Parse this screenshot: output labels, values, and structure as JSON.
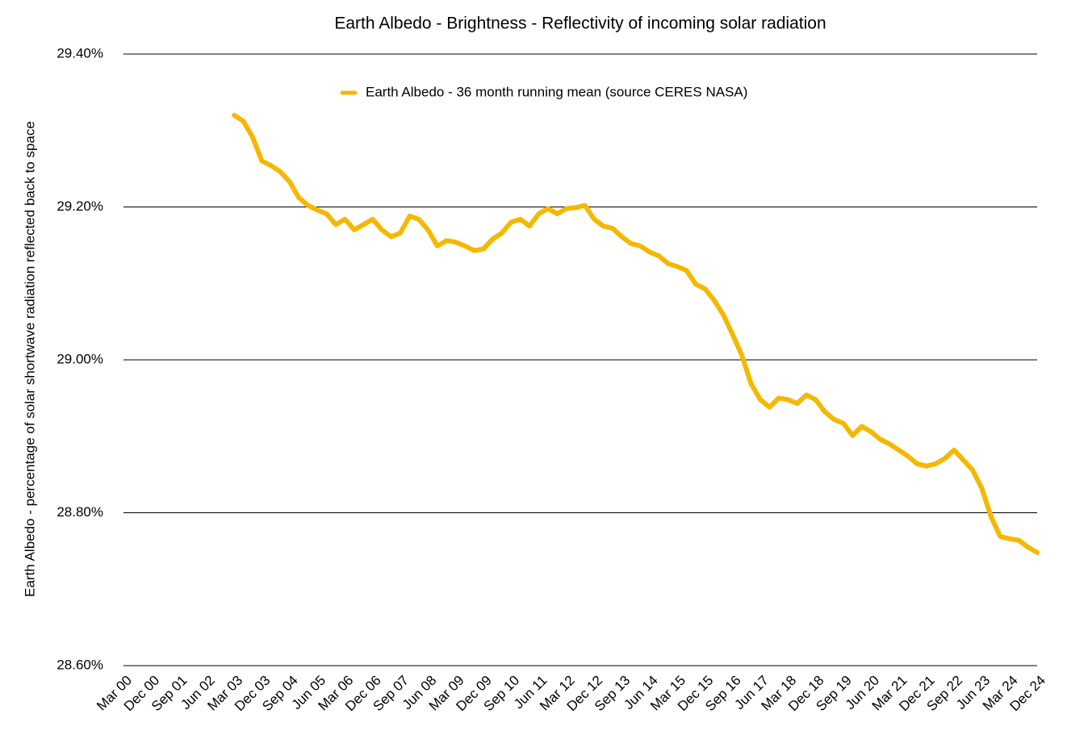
{
  "chart_data": {
    "type": "line",
    "title": "Earth Albedo - Brightness - Reflectivity of incoming solar radiation",
    "y_label": "Earth Albedo - percentage of solar shortwave radiation reflected back to space",
    "categories": [
      "Mar 00",
      null,
      null,
      "Dec 00",
      null,
      null,
      "Sep 01",
      null,
      null,
      "Jun 02",
      null,
      null,
      "Mar 03",
      null,
      null,
      "Dec 03",
      null,
      null,
      "Sep 04",
      null,
      null,
      "Jun 05",
      null,
      null,
      "Mar 06",
      null,
      null,
      "Dec 06",
      null,
      null,
      "Sep 07",
      null,
      null,
      "Jun 08",
      null,
      null,
      "Mar 09",
      null,
      null,
      "Dec 09",
      null,
      null,
      "Sep 10",
      null,
      null,
      "Jun 11",
      null,
      null,
      "Mar 12",
      null,
      null,
      "Dec 12",
      null,
      null,
      "Sep 13",
      null,
      null,
      "Jun 14",
      null,
      null,
      "Mar 15",
      null,
      null,
      "Dec 15",
      null,
      null,
      "Sep 16",
      null,
      null,
      "Jun 17",
      null,
      null,
      "Mar 18",
      null,
      null,
      "Dec 18",
      null,
      null,
      "Sep 19",
      null,
      null,
      "Jun 20",
      null,
      null,
      "Mar 21",
      null,
      null,
      "Dec 21",
      null,
      null,
      "Sep 22",
      null,
      null,
      "Jun 23",
      null,
      null,
      "Mar 24",
      null,
      null,
      "Dec 24"
    ],
    "series": [
      {
        "name": "Earth Albedo - 36 month running mean (source CERES NASA)",
        "color": "#f5b800",
        "values": [
          null,
          null,
          null,
          null,
          null,
          null,
          null,
          null,
          null,
          null,
          null,
          null,
          29.32,
          29.312,
          29.291,
          29.26,
          29.254,
          29.246,
          29.233,
          29.212,
          29.202,
          29.196,
          29.191,
          29.177,
          29.184,
          29.17,
          29.177,
          29.184,
          29.17,
          29.161,
          29.166,
          29.188,
          29.184,
          29.17,
          29.149,
          29.156,
          29.154,
          29.149,
          29.143,
          29.145,
          29.158,
          29.166,
          29.18,
          29.184,
          29.175,
          29.191,
          29.198,
          29.191,
          29.198,
          29.199,
          29.202,
          29.184,
          29.175,
          29.172,
          29.161,
          29.152,
          29.149,
          29.141,
          29.136,
          29.126,
          29.122,
          29.117,
          29.099,
          29.093,
          29.078,
          29.059,
          29.033,
          29.006,
          28.969,
          28.948,
          28.938,
          28.95,
          28.948,
          28.943,
          28.954,
          28.948,
          28.932,
          28.922,
          28.917,
          28.901,
          28.913,
          28.906,
          28.896,
          28.89,
          28.882,
          28.874,
          28.864,
          28.861,
          28.864,
          28.871,
          28.882,
          28.869,
          28.856,
          28.832,
          28.795,
          28.769,
          28.766,
          28.764,
          28.755,
          28.748
        ]
      }
    ],
    "ylim": [
      28.6,
      29.4
    ],
    "yticks": [
      {
        "value": 28.6,
        "label": "28.60%"
      },
      {
        "value": 28.8,
        "label": "28.80%"
      },
      {
        "value": 29.0,
        "label": "29.00%"
      },
      {
        "value": 29.2,
        "label": "29.20%"
      },
      {
        "value": 29.4,
        "label": "29.40%"
      }
    ],
    "grid": true,
    "legend": "top"
  }
}
